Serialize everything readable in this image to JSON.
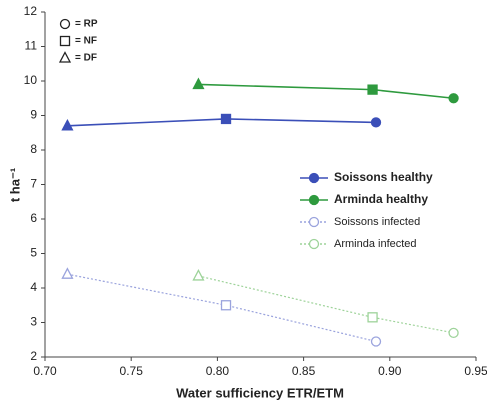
{
  "chart_data": {
    "type": "scatter-line",
    "xlabel": "Water sufficiency ETR/ETM",
    "ylabel": "t ha⁻¹",
    "xlim": [
      0.7,
      0.95
    ],
    "xticks": [
      {
        "value": 0.7,
        "label": "0.70"
      },
      {
        "value": 0.75,
        "label": "0.75"
      },
      {
        "value": 0.8,
        "label": "0.80"
      },
      {
        "value": 0.85,
        "label": "0.85"
      },
      {
        "value": 0.9,
        "label": "0.90"
      },
      {
        "value": 0.95,
        "label": "0.95"
      }
    ],
    "ylim": [
      2,
      12
    ],
    "yticks": [
      2,
      3,
      4,
      5,
      6,
      7,
      8,
      9,
      10,
      11,
      12
    ],
    "marker_key": [
      {
        "symbol": "circle",
        "label": "= RP"
      },
      {
        "symbol": "square",
        "label": "= NF"
      },
      {
        "symbol": "triangle",
        "label": "= DF"
      }
    ],
    "legend": "right",
    "series": [
      {
        "name": "Soissons healthy",
        "color": "#3b4fb8",
        "filled": true,
        "x": [
          0.713,
          0.805,
          0.892
        ],
        "values": [
          8.7,
          8.9,
          8.8
        ],
        "markers": [
          "triangle",
          "square",
          "circle"
        ]
      },
      {
        "name": "Arminda healthy",
        "color": "#2e9a3e",
        "filled": true,
        "x": [
          0.789,
          0.89,
          0.937
        ],
        "values": [
          9.9,
          9.75,
          9.5
        ],
        "markers": [
          "triangle",
          "square",
          "circle"
        ]
      },
      {
        "name": "Soissons infected",
        "color": "#9aa3dd",
        "filled": false,
        "x": [
          0.713,
          0.805,
          0.892
        ],
        "values": [
          4.4,
          3.5,
          2.45
        ],
        "markers": [
          "triangle",
          "square",
          "circle"
        ]
      },
      {
        "name": "Arminda infected",
        "color": "#9ed39a",
        "filled": false,
        "x": [
          0.789,
          0.89,
          0.937
        ],
        "values": [
          4.35,
          3.15,
          2.7
        ],
        "markers": [
          "triangle",
          "square",
          "circle"
        ]
      }
    ]
  }
}
